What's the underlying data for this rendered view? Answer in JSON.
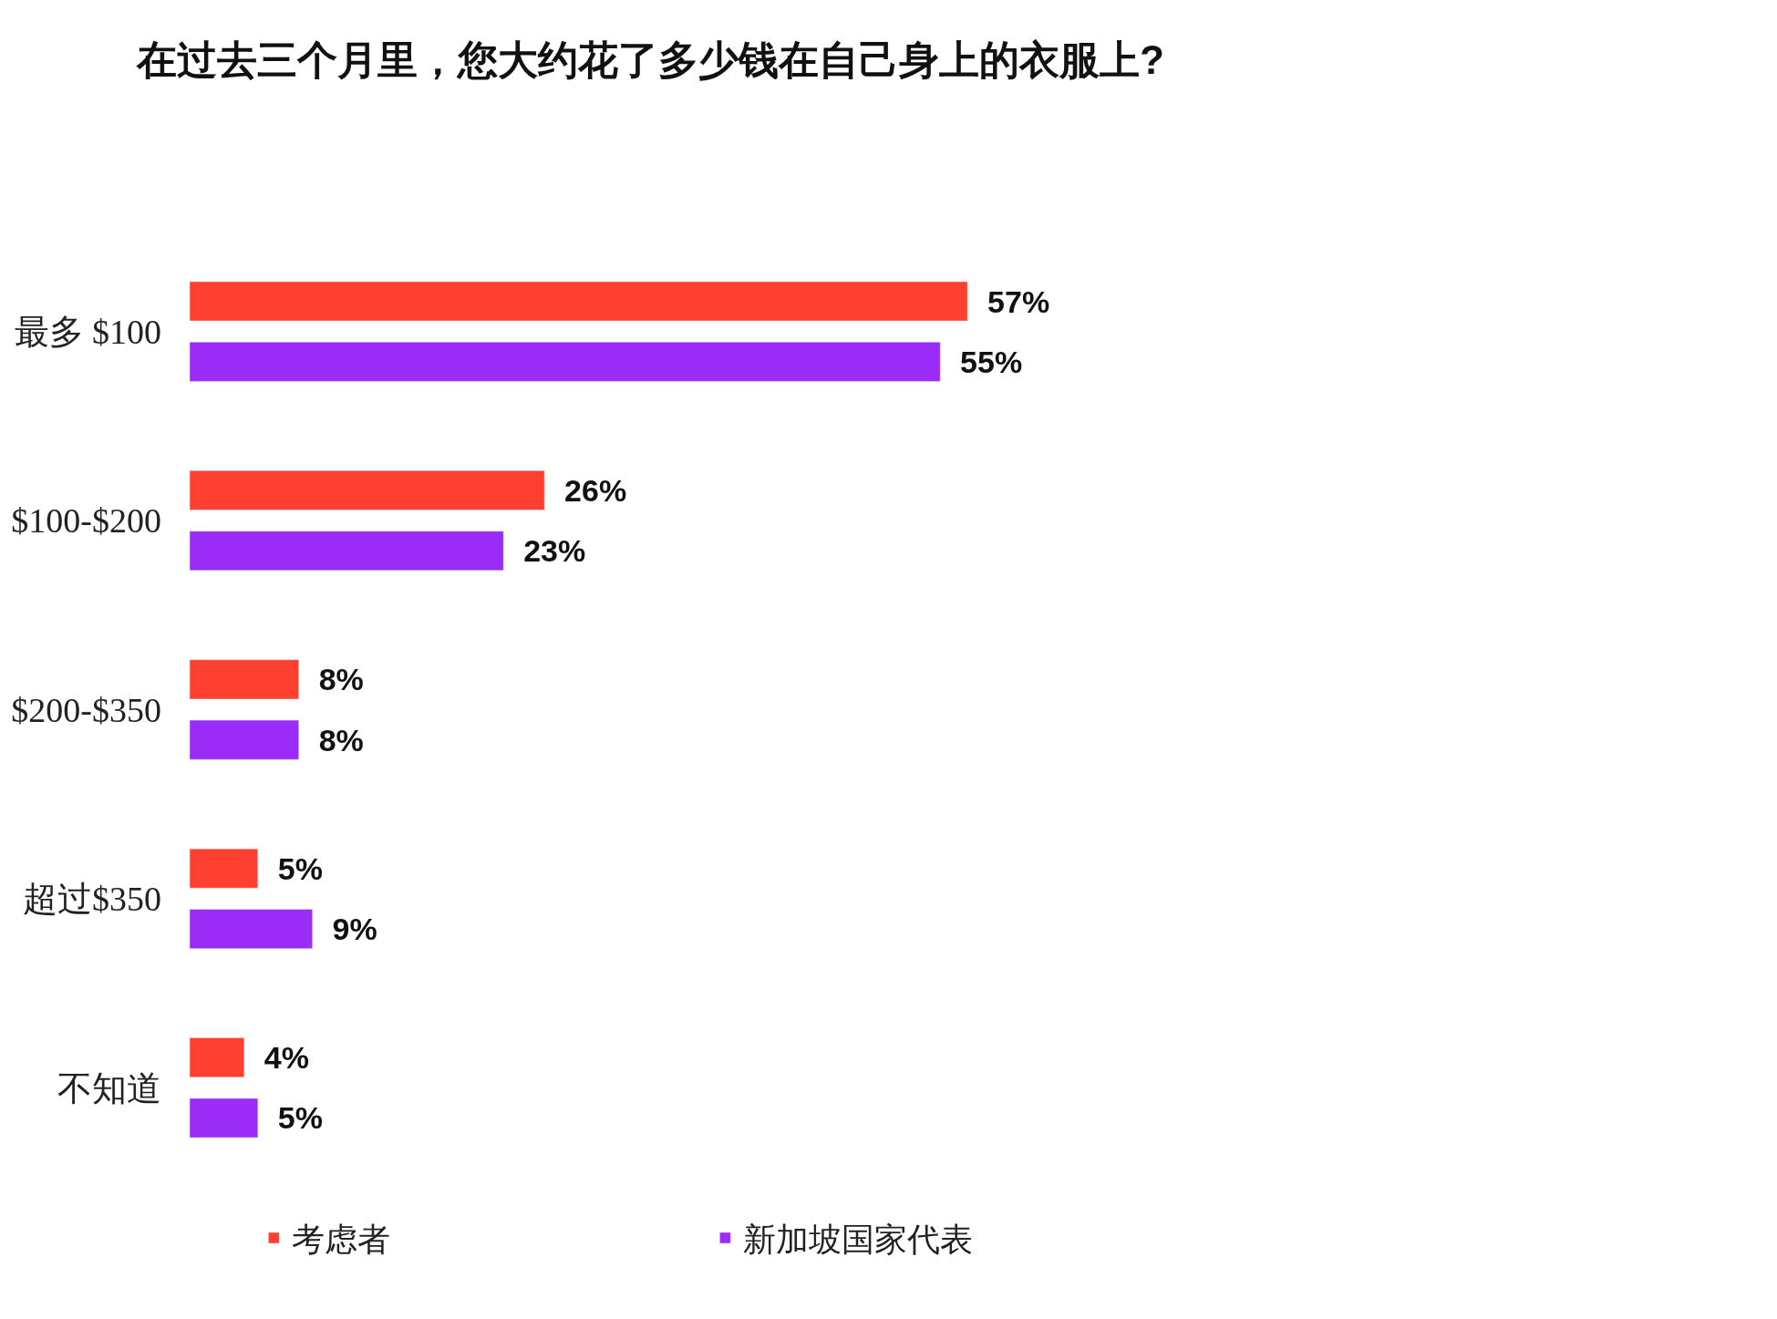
{
  "chart_data": {
    "type": "bar",
    "orientation": "horizontal",
    "title": "在过去三个月里，您大约花了多少钱在自己身上的衣服上?",
    "categories": [
      "最多 $100",
      "$100-$200",
      "$200-$350",
      "超过$350",
      "不知道"
    ],
    "series": [
      {
        "name": "考虑者",
        "color": "#ff4030",
        "values": [
          57,
          26,
          8,
          5,
          4
        ],
        "value_labels": [
          "57%",
          "26%",
          "8%",
          "5%",
          "4%"
        ]
      },
      {
        "name": "新加坡国家代表",
        "color": "#9b2cf7",
        "values": [
          55,
          23,
          8,
          9,
          5
        ],
        "value_labels": [
          "55%",
          "23%",
          "8%",
          "9%",
          "5%"
        ]
      }
    ],
    "legend": "bottom"
  }
}
